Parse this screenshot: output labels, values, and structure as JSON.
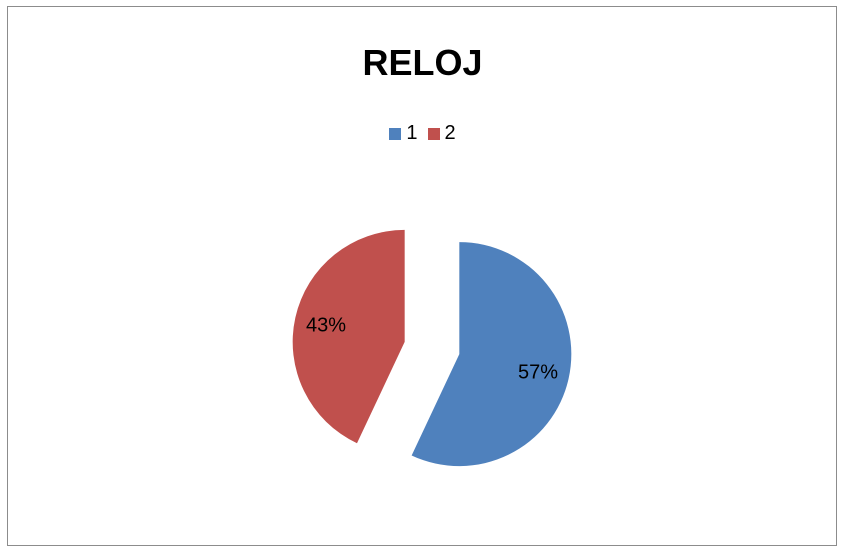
{
  "chart_data": {
    "type": "pie",
    "title": "RELOJ",
    "categories": [
      "1",
      "2"
    ],
    "values": [
      57,
      43
    ],
    "labels": [
      "57%",
      "43%"
    ],
    "colors": [
      "#4f81bd",
      "#c0504d"
    ],
    "legend_position": "top",
    "exploded": true
  }
}
